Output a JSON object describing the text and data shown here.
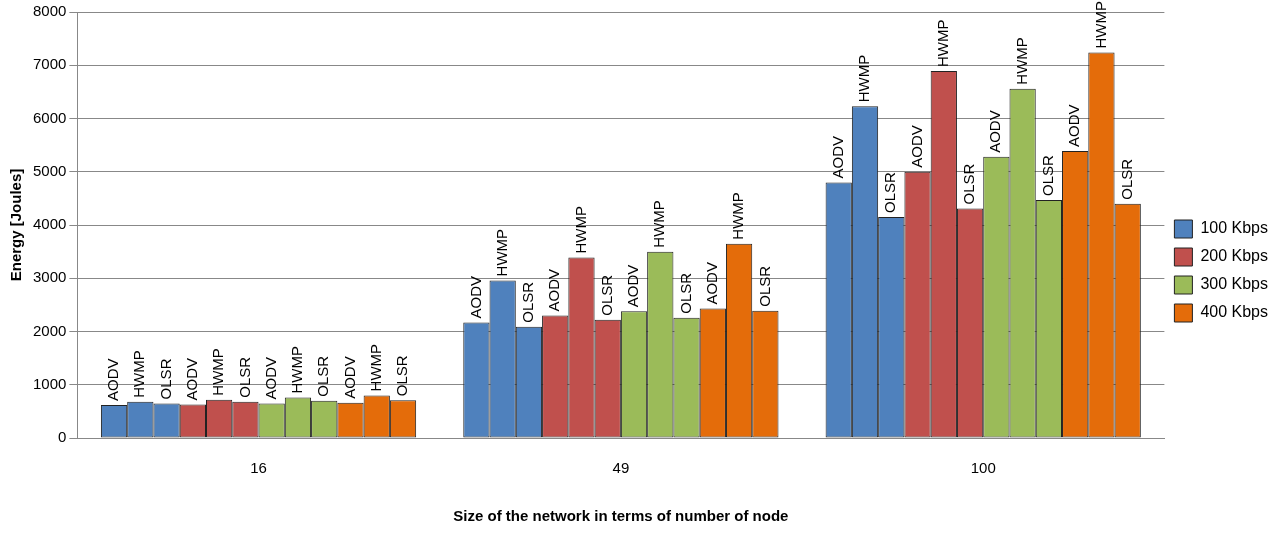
{
  "chart_data": {
    "type": "bar",
    "xlabel": "Size of the network in terms of number of node",
    "ylabel": "Energy [Joules]",
    "categories": [
      "16",
      "49",
      "100"
    ],
    "series": [
      {
        "name": "100 Kbps",
        "color": "#4f81bd",
        "values": [
          620,
          2170,
          4800
        ],
        "value_labels": [
          "AODV",
          "AODV",
          "AODV"
        ]
      },
      {
        "color": "#4f81bd",
        "values": [
          680,
          2960,
          6230
        ],
        "value_labels": [
          "HWMP",
          "HWMP",
          "HWMP"
        ]
      },
      {
        "color": "#4f81bd",
        "values": [
          650,
          2090,
          4150
        ],
        "value_labels": [
          "OLSR",
          "OLSR",
          "OLSR"
        ]
      },
      {
        "name": "200 Kbps",
        "color": "#c0504d",
        "values": [
          630,
          2300,
          5000
        ],
        "value_labels": [
          "AODV",
          "AODV",
          "AODV"
        ]
      },
      {
        "color": "#c0504d",
        "values": [
          720,
          3390,
          6890
        ],
        "value_labels": [
          "HWMP",
          "HWMP",
          "HWMP"
        ]
      },
      {
        "color": "#c0504d",
        "values": [
          680,
          2220,
          4310
        ],
        "value_labels": [
          "OLSR",
          "OLSR",
          "OLSR"
        ]
      },
      {
        "name": "300 Kbps",
        "color": "#9bbb59",
        "values": [
          650,
          2380,
          5280
        ],
        "value_labels": [
          "AODV",
          "AODV",
          "AODV"
        ]
      },
      {
        "color": "#9bbb59",
        "values": [
          760,
          3500,
          6560
        ],
        "value_labels": [
          "HWMP",
          "HWMP",
          "HWMP"
        ]
      },
      {
        "color": "#9bbb59",
        "values": [
          700,
          2260,
          4470
        ],
        "value_labels": [
          "OLSR",
          "OLSR",
          "OLSR"
        ]
      },
      {
        "name": "400 Kbps",
        "color": "#e46c0a",
        "values": [
          660,
          2430,
          5390
        ],
        "value_labels": [
          "AODV",
          "AODV",
          "AODV"
        ]
      },
      {
        "color": "#e46c0a",
        "values": [
          800,
          3650,
          7240
        ],
        "value_labels": [
          "HWMP",
          "HWMP",
          "HWMP"
        ]
      },
      {
        "color": "#e46c0a",
        "values": [
          710,
          2390,
          4400
        ],
        "value_labels": [
          "OLSR",
          "OLSR",
          "OLSR"
        ]
      }
    ],
    "ylim": [
      0,
      8000
    ],
    "yticks": [
      0,
      1000,
      2000,
      3000,
      4000,
      5000,
      6000,
      7000,
      8000
    ],
    "grid": "y",
    "legend": "right"
  }
}
